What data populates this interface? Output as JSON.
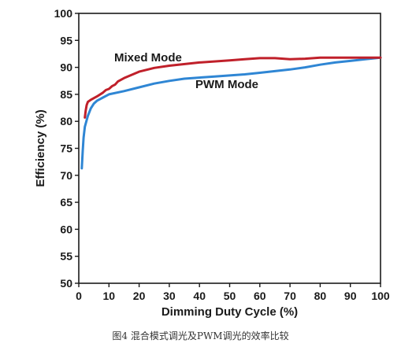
{
  "caption": "图4 混合模式调光及PWM调光的效率比较",
  "chart_data": {
    "type": "line",
    "xlabel": "Dimming Duty Cycle (%)",
    "ylabel": "Efficiency (%)",
    "xlim": [
      0,
      100
    ],
    "ylim": [
      50,
      100
    ],
    "xticks": [
      0,
      10,
      20,
      30,
      40,
      50,
      60,
      70,
      80,
      90,
      100
    ],
    "yticks": [
      50,
      55,
      60,
      65,
      70,
      75,
      80,
      85,
      90,
      95,
      100
    ],
    "grid": false,
    "series": [
      {
        "name": "Mixed Mode",
        "color": "#c0202a",
        "x": [
          2,
          2.3,
          2.6,
          3,
          4,
          6,
          8,
          9,
          10,
          11,
          12,
          13,
          15,
          20,
          25,
          30,
          40,
          50,
          55,
          60,
          65,
          70,
          75,
          80,
          90,
          100
        ],
        "y": [
          80.7,
          82,
          83,
          83.6,
          84,
          84.6,
          85.3,
          85.8,
          86,
          86.5,
          86.8,
          87.4,
          88,
          89.2,
          89.9,
          90.3,
          90.9,
          91.3,
          91.5,
          91.7,
          91.7,
          91.5,
          91.6,
          91.8,
          91.8,
          91.8
        ]
      },
      {
        "name": "PWM Mode",
        "color": "#2f86d4",
        "x": [
          1,
          1.3,
          1.6,
          2,
          3,
          4,
          5,
          6,
          8,
          10,
          15,
          20,
          25,
          30,
          35,
          40,
          45,
          50,
          55,
          60,
          65,
          70,
          75,
          80,
          85,
          90,
          95,
          100
        ],
        "y": [
          71.3,
          74.5,
          77,
          79,
          81,
          82.4,
          83.3,
          83.8,
          84.4,
          85,
          85.6,
          86.3,
          87,
          87.5,
          87.9,
          88.1,
          88.3,
          88.5,
          88.7,
          89,
          89.3,
          89.6,
          90,
          90.5,
          90.9,
          91.2,
          91.5,
          91.8
        ]
      }
    ]
  }
}
